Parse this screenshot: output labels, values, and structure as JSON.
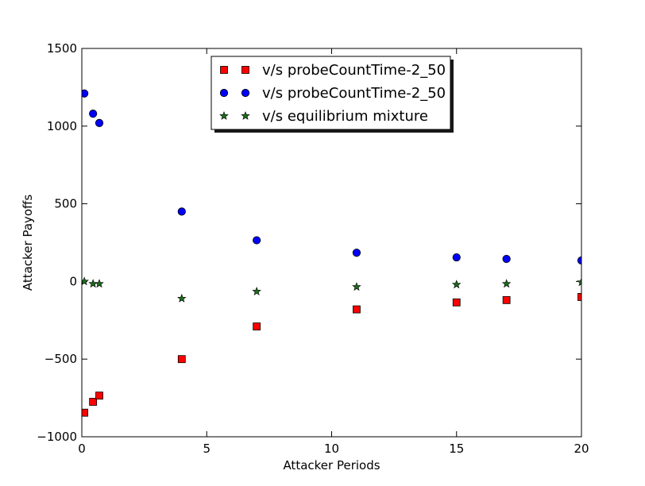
{
  "chart_data": {
    "type": "scatter",
    "title": "",
    "xlabel": "Attacker Periods",
    "ylabel": "Attacker Payoffs",
    "xlim": [
      0,
      20
    ],
    "ylim": [
      -1000,
      1500
    ],
    "xticks": [
      0,
      5,
      10,
      15,
      20
    ],
    "yticks": [
      -1000,
      -500,
      0,
      500,
      1000,
      1500
    ],
    "xtick_labels": [
      "0",
      "5",
      "10",
      "15",
      "20"
    ],
    "ytick_labels": [
      "−1000",
      "−500",
      "0",
      "500",
      "1000",
      "1500"
    ],
    "grid": false,
    "legend_position": "top-center",
    "series": [
      {
        "name": "v/s probeCountTime-2_50",
        "marker": "square",
        "color": "#ff0000",
        "x": [
          0.1,
          0.45,
          0.7,
          4,
          7,
          11,
          15,
          17,
          20
        ],
        "y": [
          -845,
          -775,
          -735,
          -500,
          -290,
          -180,
          -135,
          -120,
          -100
        ]
      },
      {
        "name": "v/s probeCountTime-2_50",
        "marker": "circle",
        "color": "#0000ff",
        "x": [
          0.1,
          0.45,
          0.7,
          4,
          7,
          11,
          15,
          17,
          20
        ],
        "y": [
          1210,
          1080,
          1020,
          450,
          265,
          185,
          155,
          145,
          135
        ]
      },
      {
        "name": "v/s equilibrium mixture",
        "marker": "star",
        "color": "#1a6b1a",
        "x": [
          0.1,
          0.45,
          0.7,
          4,
          7,
          11,
          15,
          17,
          20
        ],
        "y": [
          0,
          -15,
          -15,
          -110,
          -65,
          -35,
          -20,
          -15,
          -5
        ]
      }
    ]
  }
}
